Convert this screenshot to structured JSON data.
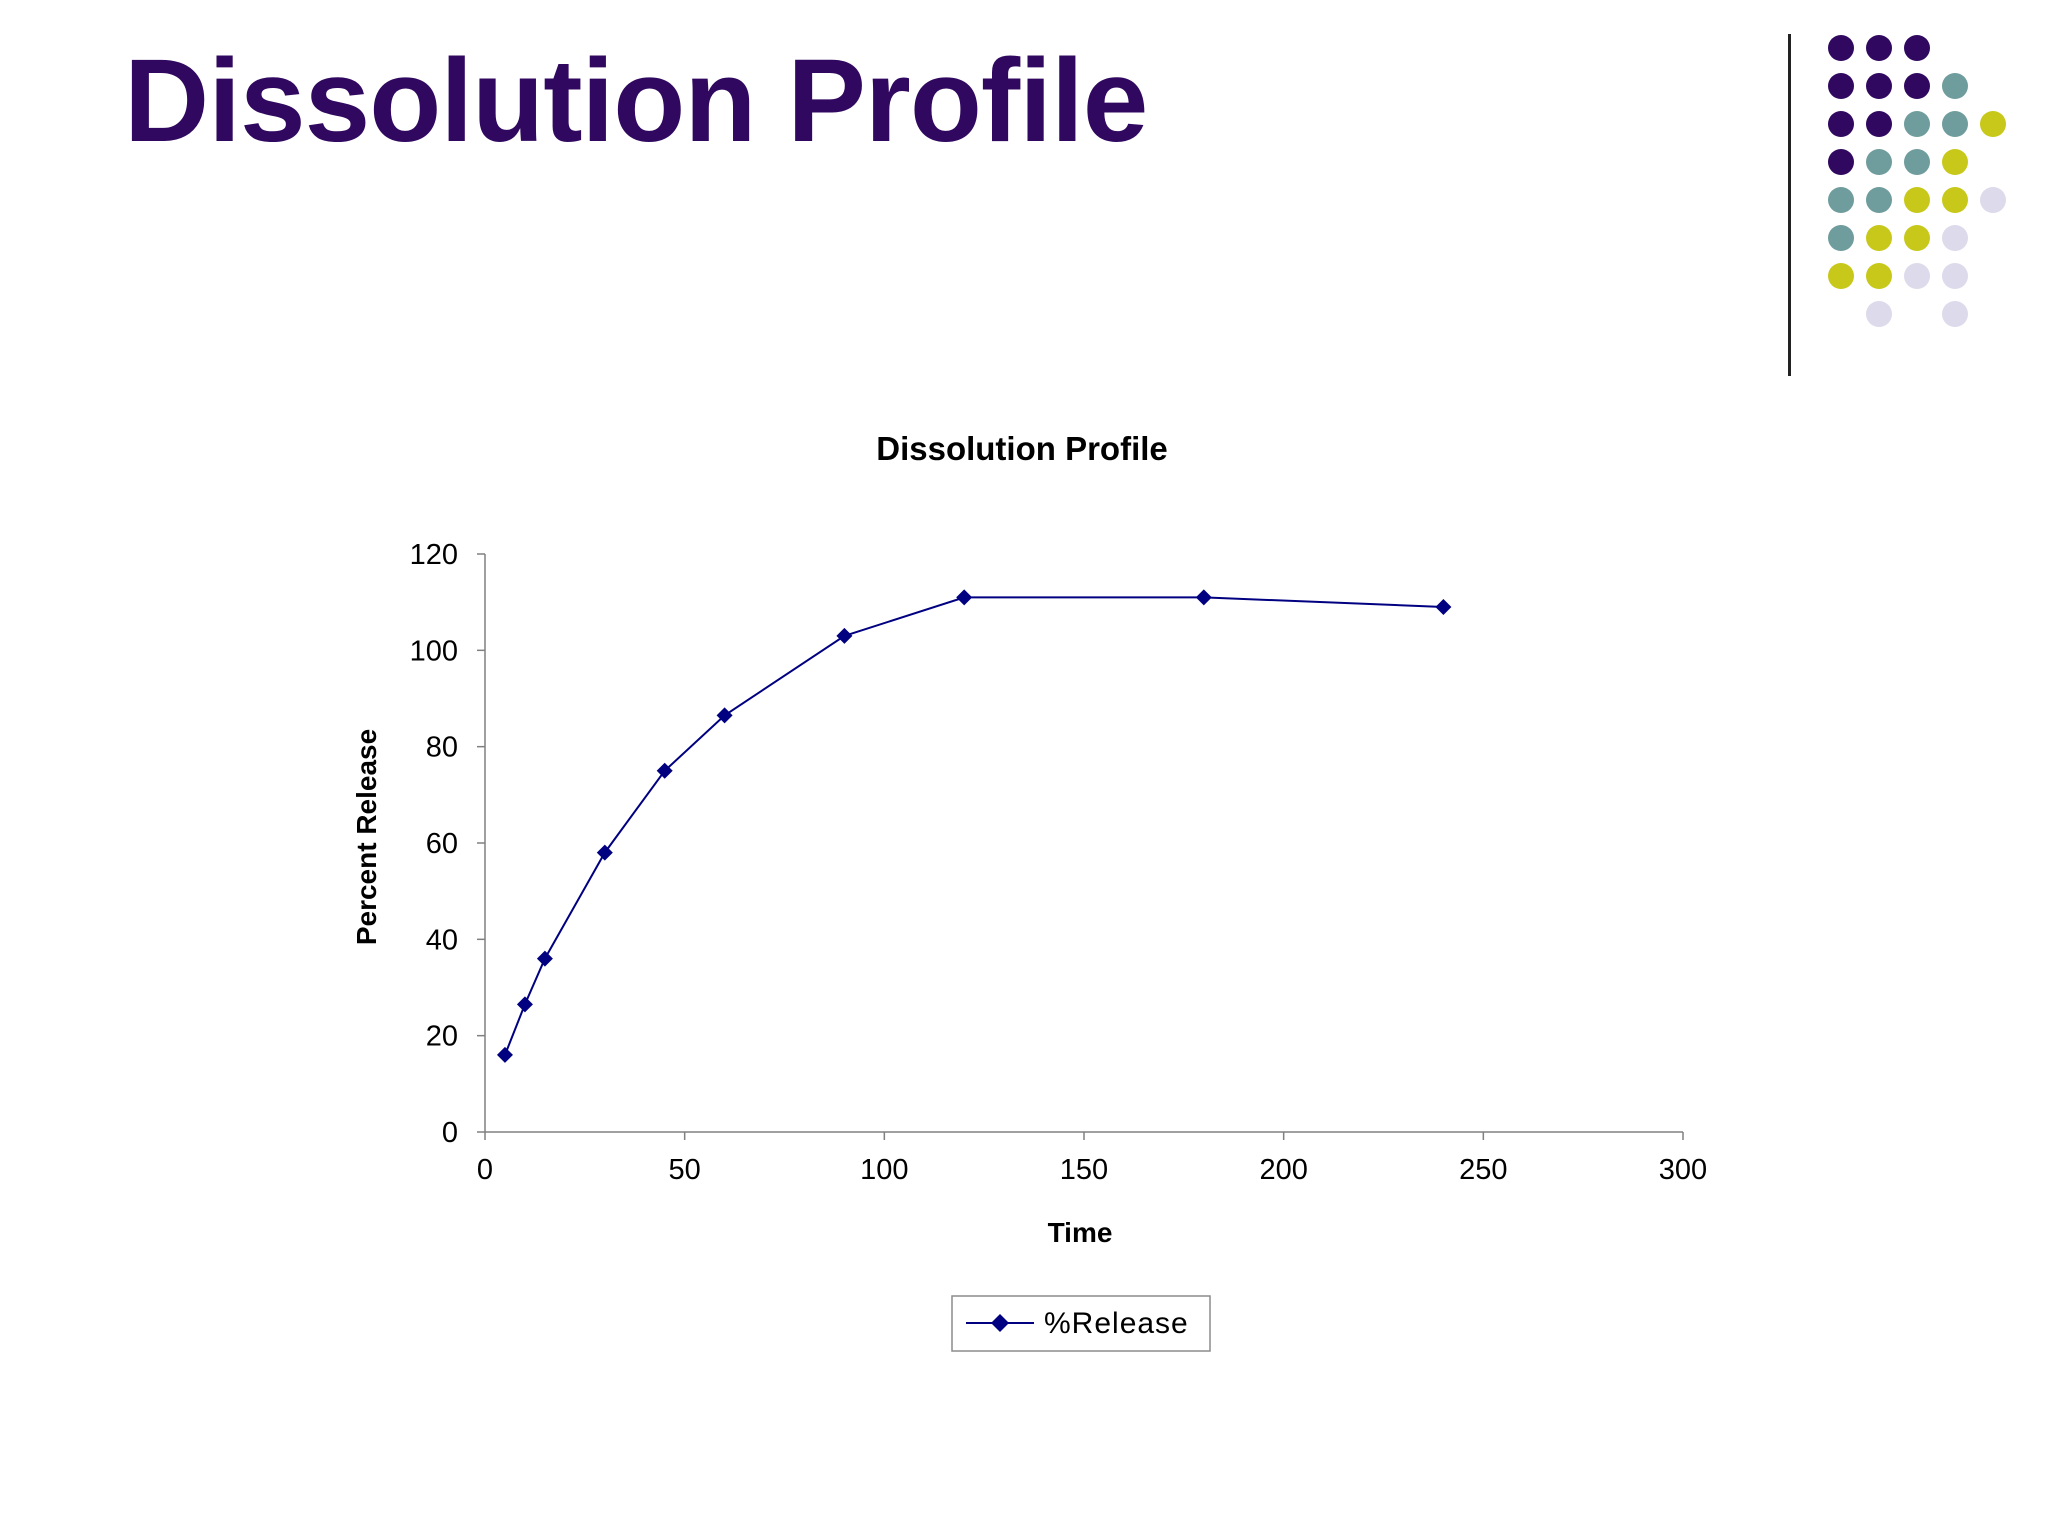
{
  "slide": {
    "title": "Dissolution Profile"
  },
  "decoration": {
    "dot_colors": {
      "purple": "#30085f",
      "teal": "#6f9c9c",
      "lime": "#c8c81a",
      "lavender": "#dcdaeb"
    },
    "dot_rows": [
      [
        "purple",
        "purple",
        "purple",
        null,
        null
      ],
      [
        "purple",
        "purple",
        "purple",
        "teal",
        null
      ],
      [
        "purple",
        "purple",
        "teal",
        "teal",
        "lime"
      ],
      [
        "purple",
        "teal",
        "teal",
        "lime",
        null
      ],
      [
        "teal",
        "teal",
        "lime",
        "lime",
        "lavender"
      ],
      [
        "teal",
        "lime",
        "lime",
        "lavender",
        null
      ],
      [
        "lime",
        "lime",
        "lavender",
        "lavender",
        null
      ],
      [
        null,
        "lavender",
        null,
        "lavender",
        null
      ]
    ]
  },
  "chart_data": {
    "type": "line",
    "title": "Dissolution Profile",
    "xlabel": "Time",
    "ylabel": "Percent Release",
    "xlim": [
      0,
      300
    ],
    "ylim": [
      0,
      120
    ],
    "x_ticks": [
      0,
      50,
      100,
      150,
      200,
      250,
      300
    ],
    "y_ticks": [
      0,
      20,
      40,
      60,
      80,
      100,
      120
    ],
    "grid": false,
    "legend_position": "bottom",
    "series": [
      {
        "name": "%Release",
        "color": "#000080",
        "marker": "diamond",
        "x": [
          5,
          10,
          15,
          30,
          45,
          60,
          90,
          120,
          180,
          240
        ],
        "y": [
          16,
          26.5,
          36,
          58,
          75,
          86.5,
          103,
          111,
          111,
          109
        ]
      }
    ]
  }
}
